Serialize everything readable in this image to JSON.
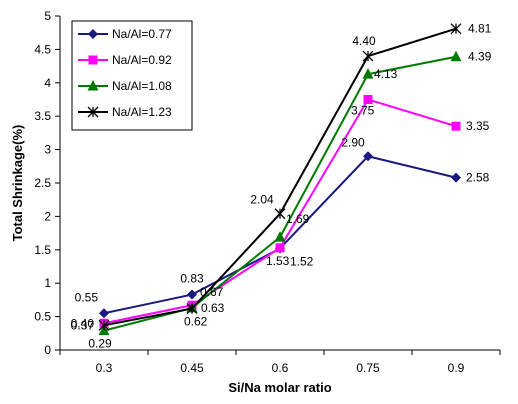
{
  "chart_data": {
    "type": "line",
    "title": "",
    "xlabel": "Si/Na molar ratio",
    "ylabel": "Total Shrinkage(%)",
    "categories": [
      "0.3",
      "0.45",
      "0.6",
      "0.75",
      "0.9"
    ],
    "ylim": [
      0,
      5
    ],
    "yticks": [
      "0",
      "0.5",
      "1",
      "1.5",
      "2",
      "2.5",
      "3",
      "3.5",
      "4",
      "4.5",
      "5"
    ],
    "grid": false,
    "legend_position": "top-left",
    "series": [
      {
        "name": "Na/Al=0.77",
        "color": "#1a1a7e",
        "marker": "diamond",
        "values": [
          0.55,
          0.83,
          1.52,
          2.9,
          2.58
        ],
        "labels": [
          "0.55",
          "0.83",
          "1.52",
          "2.90",
          "2.58"
        ]
      },
      {
        "name": "Na/Al=0.92",
        "color": "#ff00ff",
        "marker": "square",
        "values": [
          0.4,
          0.67,
          1.53,
          3.75,
          3.35
        ],
        "labels": [
          "0.40",
          "0.67",
          "1.53",
          "3.75",
          "3.35"
        ]
      },
      {
        "name": "Na/Al=1.08",
        "color": "#007a00",
        "marker": "triangle",
        "values": [
          0.29,
          0.63,
          1.69,
          4.13,
          4.39
        ],
        "labels": [
          "0.29",
          "0.63",
          "1.69",
          "4.13",
          "4.39"
        ]
      },
      {
        "name": "Na/Al=1.23",
        "color": "#000000",
        "marker": "star",
        "values": [
          0.37,
          0.62,
          2.04,
          4.4,
          4.81
        ],
        "labels": [
          "0.37",
          "0.62",
          "2.04",
          "4.40",
          "4.81"
        ]
      }
    ]
  }
}
